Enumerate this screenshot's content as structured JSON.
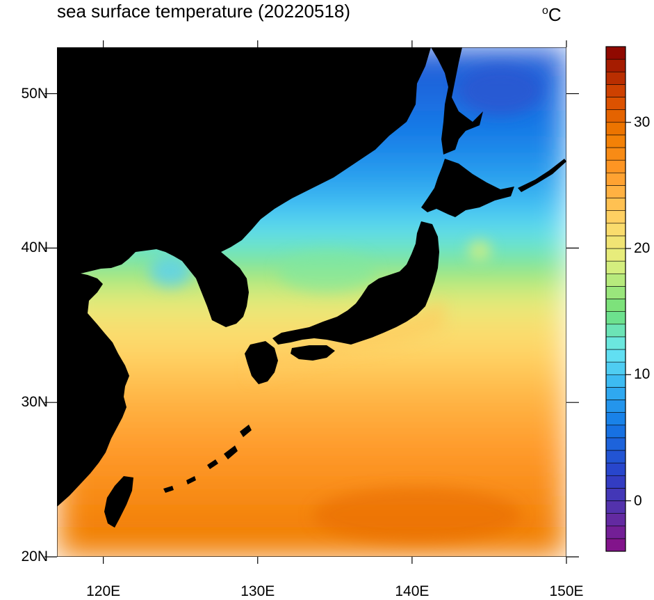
{
  "title": "sea surface temperature (20220518)",
  "unit": {
    "symbol": "o",
    "letter": "C"
  },
  "map": {
    "projection": "cylindrical equidistant",
    "lon_range": [
      117,
      150
    ],
    "lat_range": [
      20,
      53
    ],
    "land_color": "#000000",
    "lon_ticks": [
      {
        "value": 120,
        "label": "120E"
      },
      {
        "value": 130,
        "label": "130E"
      },
      {
        "value": 140,
        "label": "140E"
      },
      {
        "value": 150,
        "label": "150E"
      }
    ],
    "lat_ticks": [
      {
        "value": 20,
        "label": "20N"
      },
      {
        "value": 30,
        "label": "30N"
      },
      {
        "value": 40,
        "label": "40N"
      },
      {
        "value": 50,
        "label": "50N"
      }
    ]
  },
  "colorbar": {
    "min": -4,
    "max": 36,
    "step": 1,
    "tick_labels": [
      {
        "value": 0,
        "label": "0"
      },
      {
        "value": 10,
        "label": "10"
      },
      {
        "value": 20,
        "label": "20"
      },
      {
        "value": 30,
        "label": "30"
      }
    ],
    "color_stops": [
      {
        "value": -4,
        "color": "#8a0f86"
      },
      {
        "value": -1,
        "color": "#5b2fa6"
      },
      {
        "value": 2,
        "color": "#2b3fc8"
      },
      {
        "value": 6,
        "color": "#1478e6"
      },
      {
        "value": 9,
        "color": "#34b2f2"
      },
      {
        "value": 12,
        "color": "#6ae8f2"
      },
      {
        "value": 15,
        "color": "#6ee07a"
      },
      {
        "value": 19,
        "color": "#e2f07e"
      },
      {
        "value": 22,
        "color": "#ffd86a"
      },
      {
        "value": 26,
        "color": "#ff9a2a"
      },
      {
        "value": 29,
        "color": "#f07c00"
      },
      {
        "value": 32,
        "color": "#d84a00"
      },
      {
        "value": 36,
        "color": "#860000"
      }
    ]
  }
}
